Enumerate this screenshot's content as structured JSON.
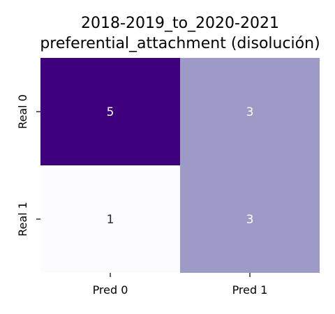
{
  "chart_data": {
    "type": "heatmap",
    "title": [
      "2018-2019_to_2020-2021",
      "preferential_attachment (disolución)"
    ],
    "x_categories": [
      "Pred 0",
      "Pred 1"
    ],
    "y_categories": [
      "Real 0",
      "Real 1"
    ],
    "values": [
      [
        5,
        3
      ],
      [
        1,
        3
      ]
    ],
    "colormap": "Purples",
    "vmin": 1,
    "vmax": 5,
    "colorbar": false,
    "grid": false
  }
}
